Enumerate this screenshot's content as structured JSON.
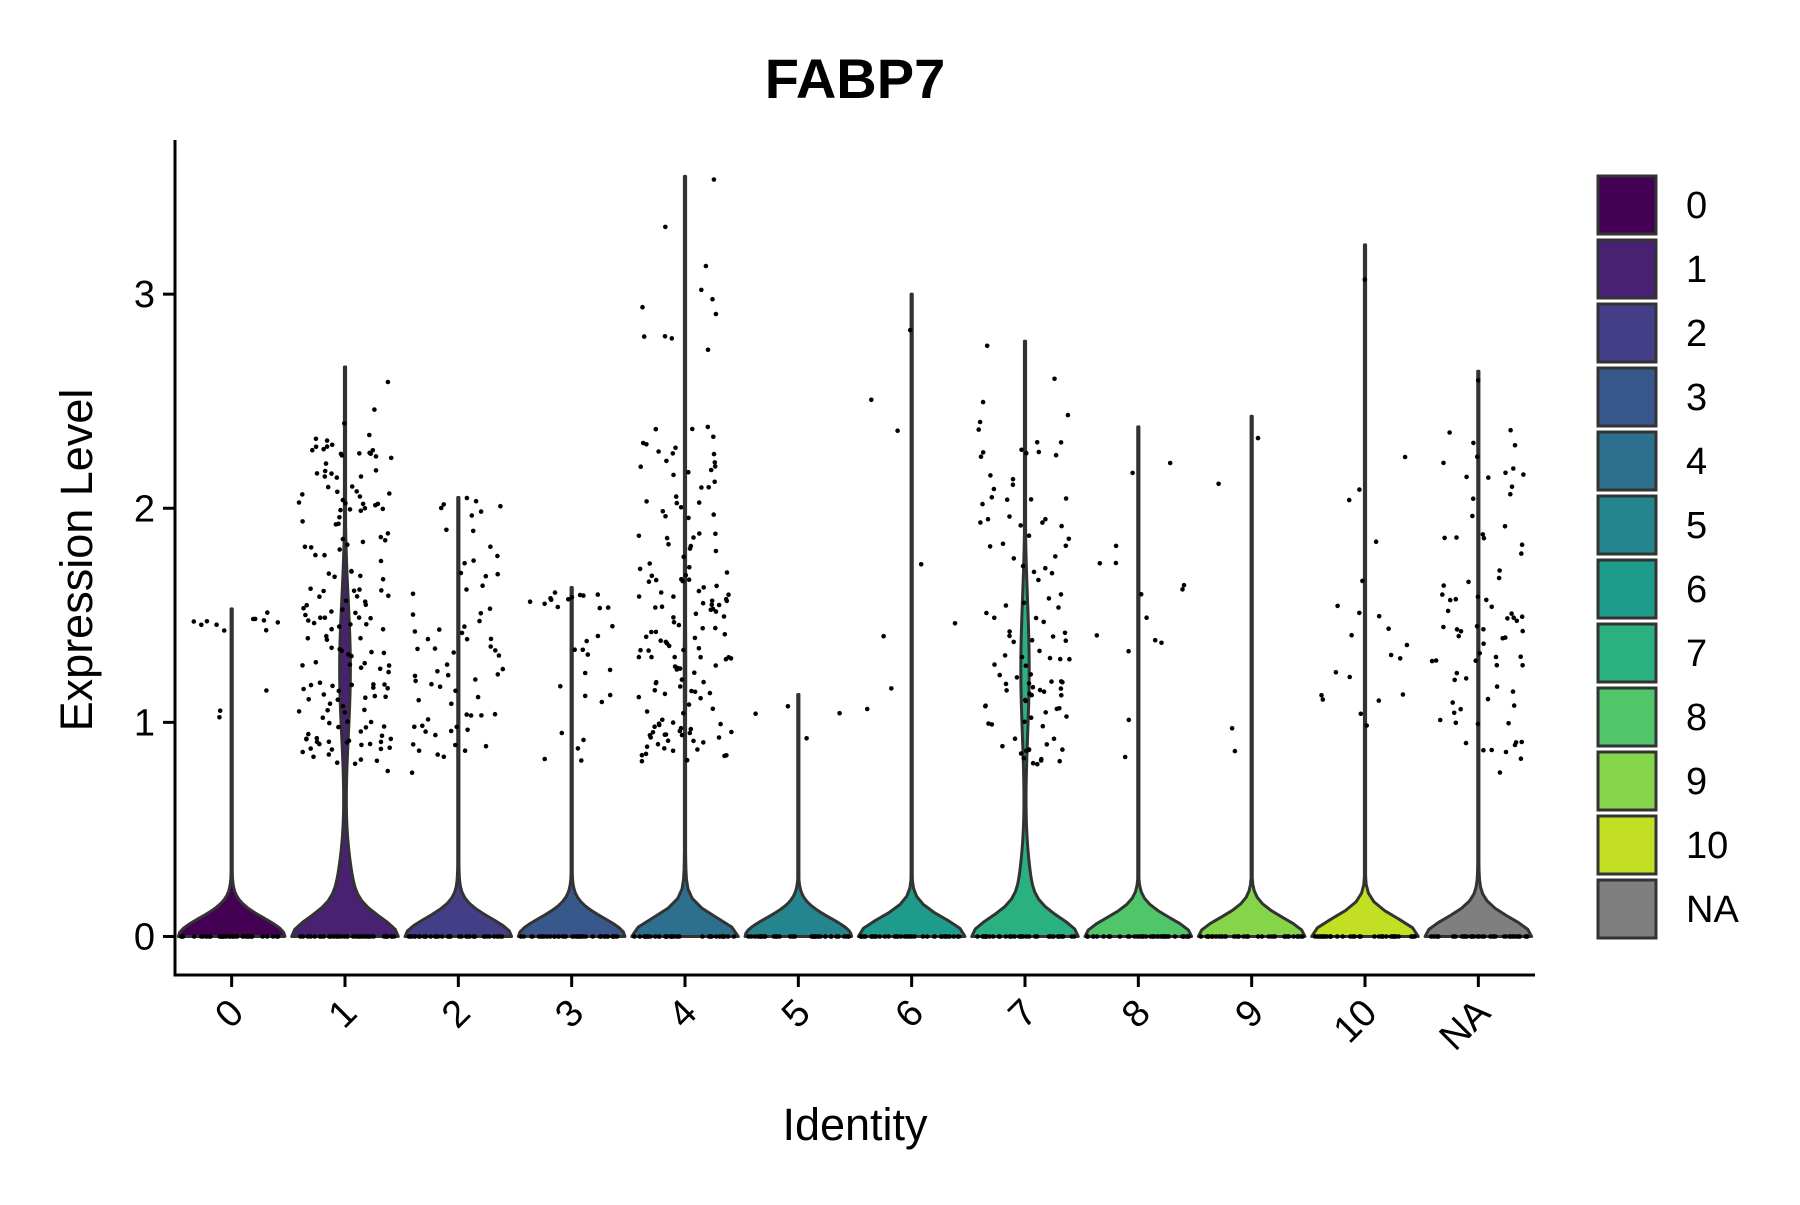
{
  "chart_data": {
    "type": "violin",
    "title": "FABP7",
    "xlabel": "Identity",
    "ylabel": "Expression Level",
    "ylim": [
      -0.18,
      3.72
    ],
    "yticks": [
      0,
      1,
      2,
      3
    ],
    "categories": [
      "0",
      "1",
      "2",
      "3",
      "4",
      "5",
      "6",
      "7",
      "8",
      "9",
      "10",
      "NA"
    ],
    "colors": [
      "#440154",
      "#482173",
      "#433E85",
      "#38588C",
      "#2D708E",
      "#25858E",
      "#1E9B8A",
      "#2BB07F",
      "#51C56A",
      "#85D54A",
      "#C2DF23",
      "#7F7F7F"
    ],
    "max_values": [
      1.53,
      2.66,
      2.05,
      1.63,
      3.55,
      1.13,
      3.0,
      2.78,
      2.38,
      2.43,
      3.23,
      2.64
    ],
    "nonzero_fraction": [
      0.02,
      0.28,
      0.03,
      0.02,
      0.04,
      0.01,
      0.01,
      0.22,
      0.01,
      0.01,
      0.01,
      0.03
    ],
    "jitter_counts": [
      14,
      170,
      70,
      30,
      160,
      4,
      8,
      110,
      15,
      4,
      22,
      80
    ],
    "legend": {
      "position": "right",
      "entries": [
        "0",
        "1",
        "2",
        "3",
        "4",
        "5",
        "6",
        "7",
        "8",
        "9",
        "10",
        "NA"
      ]
    },
    "grid": false
  }
}
